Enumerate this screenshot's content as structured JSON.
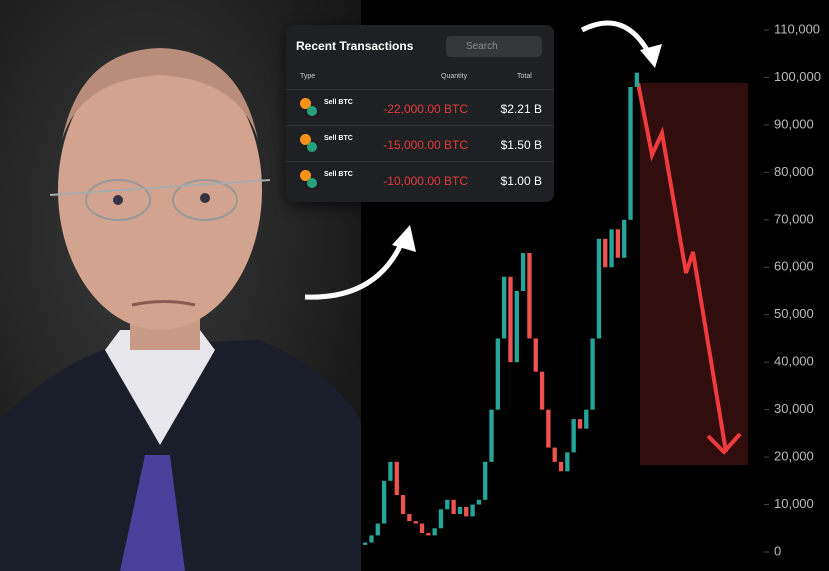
{
  "transactions": {
    "title": "Recent Transactions",
    "search": "Search",
    "columns": [
      "Type",
      "Quantity",
      "Total"
    ],
    "rows": [
      [
        "Sell BTC",
        "-22,000.00 BTC",
        "$2.21 B"
      ],
      [
        "Sell BTC",
        "-15,000.00 BTC",
        "$1.50 B"
      ],
      [
        "Sell BTC",
        "-10,000.00 BTC",
        "$1.00 B"
      ]
    ]
  },
  "chart_data": {
    "type": "candlestick",
    "up_color": "#26a69a",
    "down_color": "#ef5350",
    "open": [
      1500,
      2000,
      3500,
      6000,
      15000,
      19000,
      12000,
      8000,
      6500,
      6000,
      4000,
      3500,
      5000,
      9000,
      11000,
      8000,
      9500,
      7500,
      10000,
      11000,
      19000,
      30000,
      45000,
      58000,
      40000,
      55000,
      63000,
      45000,
      38000,
      30000,
      22000,
      19000,
      17000,
      21000,
      28000,
      26000,
      30000,
      45000,
      66000,
      60000,
      68000,
      62000,
      70000,
      98000
    ],
    "close": [
      2000,
      3500,
      6000,
      15000,
      19000,
      12000,
      8000,
      6500,
      6000,
      4000,
      3500,
      5000,
      9000,
      11000,
      8000,
      9500,
      7500,
      10000,
      11000,
      19000,
      30000,
      45000,
      58000,
      40000,
      55000,
      63000,
      45000,
      38000,
      30000,
      22000,
      19000,
      17000,
      21000,
      28000,
      26000,
      30000,
      45000,
      66000,
      60000,
      68000,
      62000,
      70000,
      98000,
      101000
    ],
    "ylim": [
      0,
      110000
    ],
    "yticks": [
      0,
      {
        "value": 10000,
        "label": "10,000"
      },
      {
        "value": 20000,
        "label": "20,000"
      },
      {
        "value": 30000,
        "label": "30,000"
      },
      {
        "value": 40000,
        "label": "40,000"
      },
      {
        "value": 50000,
        "label": "50,000"
      },
      {
        "value": 60000,
        "label": "60,000"
      },
      {
        "value": 70000,
        "label": "70,000"
      },
      {
        "value": 80000,
        "label": "80,000"
      },
      {
        "value": 90000,
        "label": "90,000"
      },
      {
        "value": 100000,
        "label": "100,000"
      },
      {
        "value": 110000,
        "label": "110,000"
      }
    ]
  }
}
